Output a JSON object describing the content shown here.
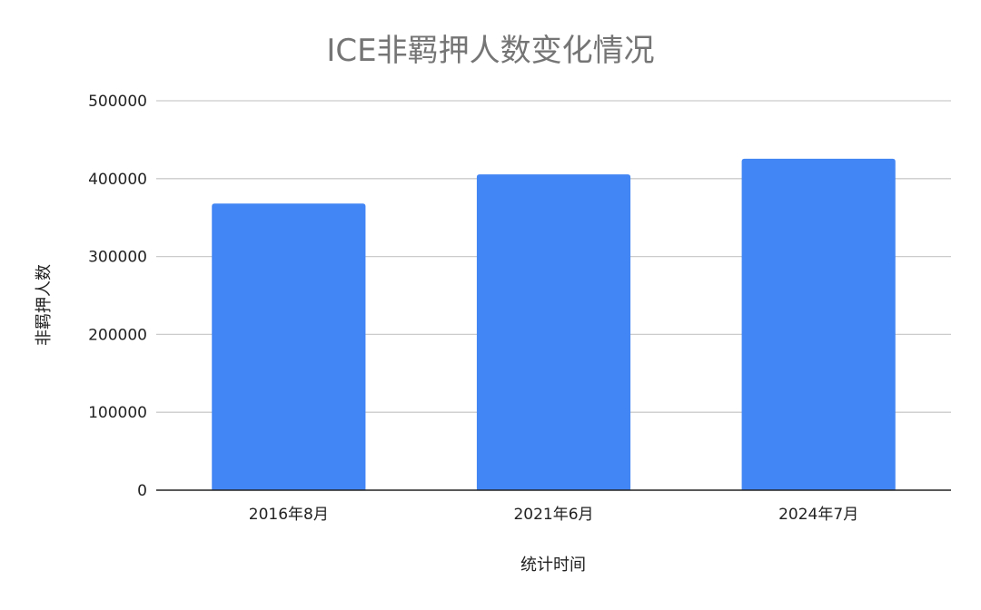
{
  "chart_data": {
    "type": "bar",
    "title": "ICE非羁押人数变化情况",
    "xlabel": "统计时间",
    "ylabel": "非羁押人数",
    "categories": [
      "2016年8月",
      "2021年6月",
      "2024年7月"
    ],
    "series": [
      {
        "values": [
          368000,
          405500,
          425600
        ]
      }
    ],
    "ylim": [
      0,
      500000
    ],
    "yticks": [
      "0",
      "100000",
      "200000",
      "300000",
      "400000",
      "500000"
    ],
    "grid": true,
    "legend": "none",
    "colors": {
      "bar": "#4285f4",
      "grid": "#cccccc",
      "axis": "#222222",
      "title": "#757575"
    }
  }
}
